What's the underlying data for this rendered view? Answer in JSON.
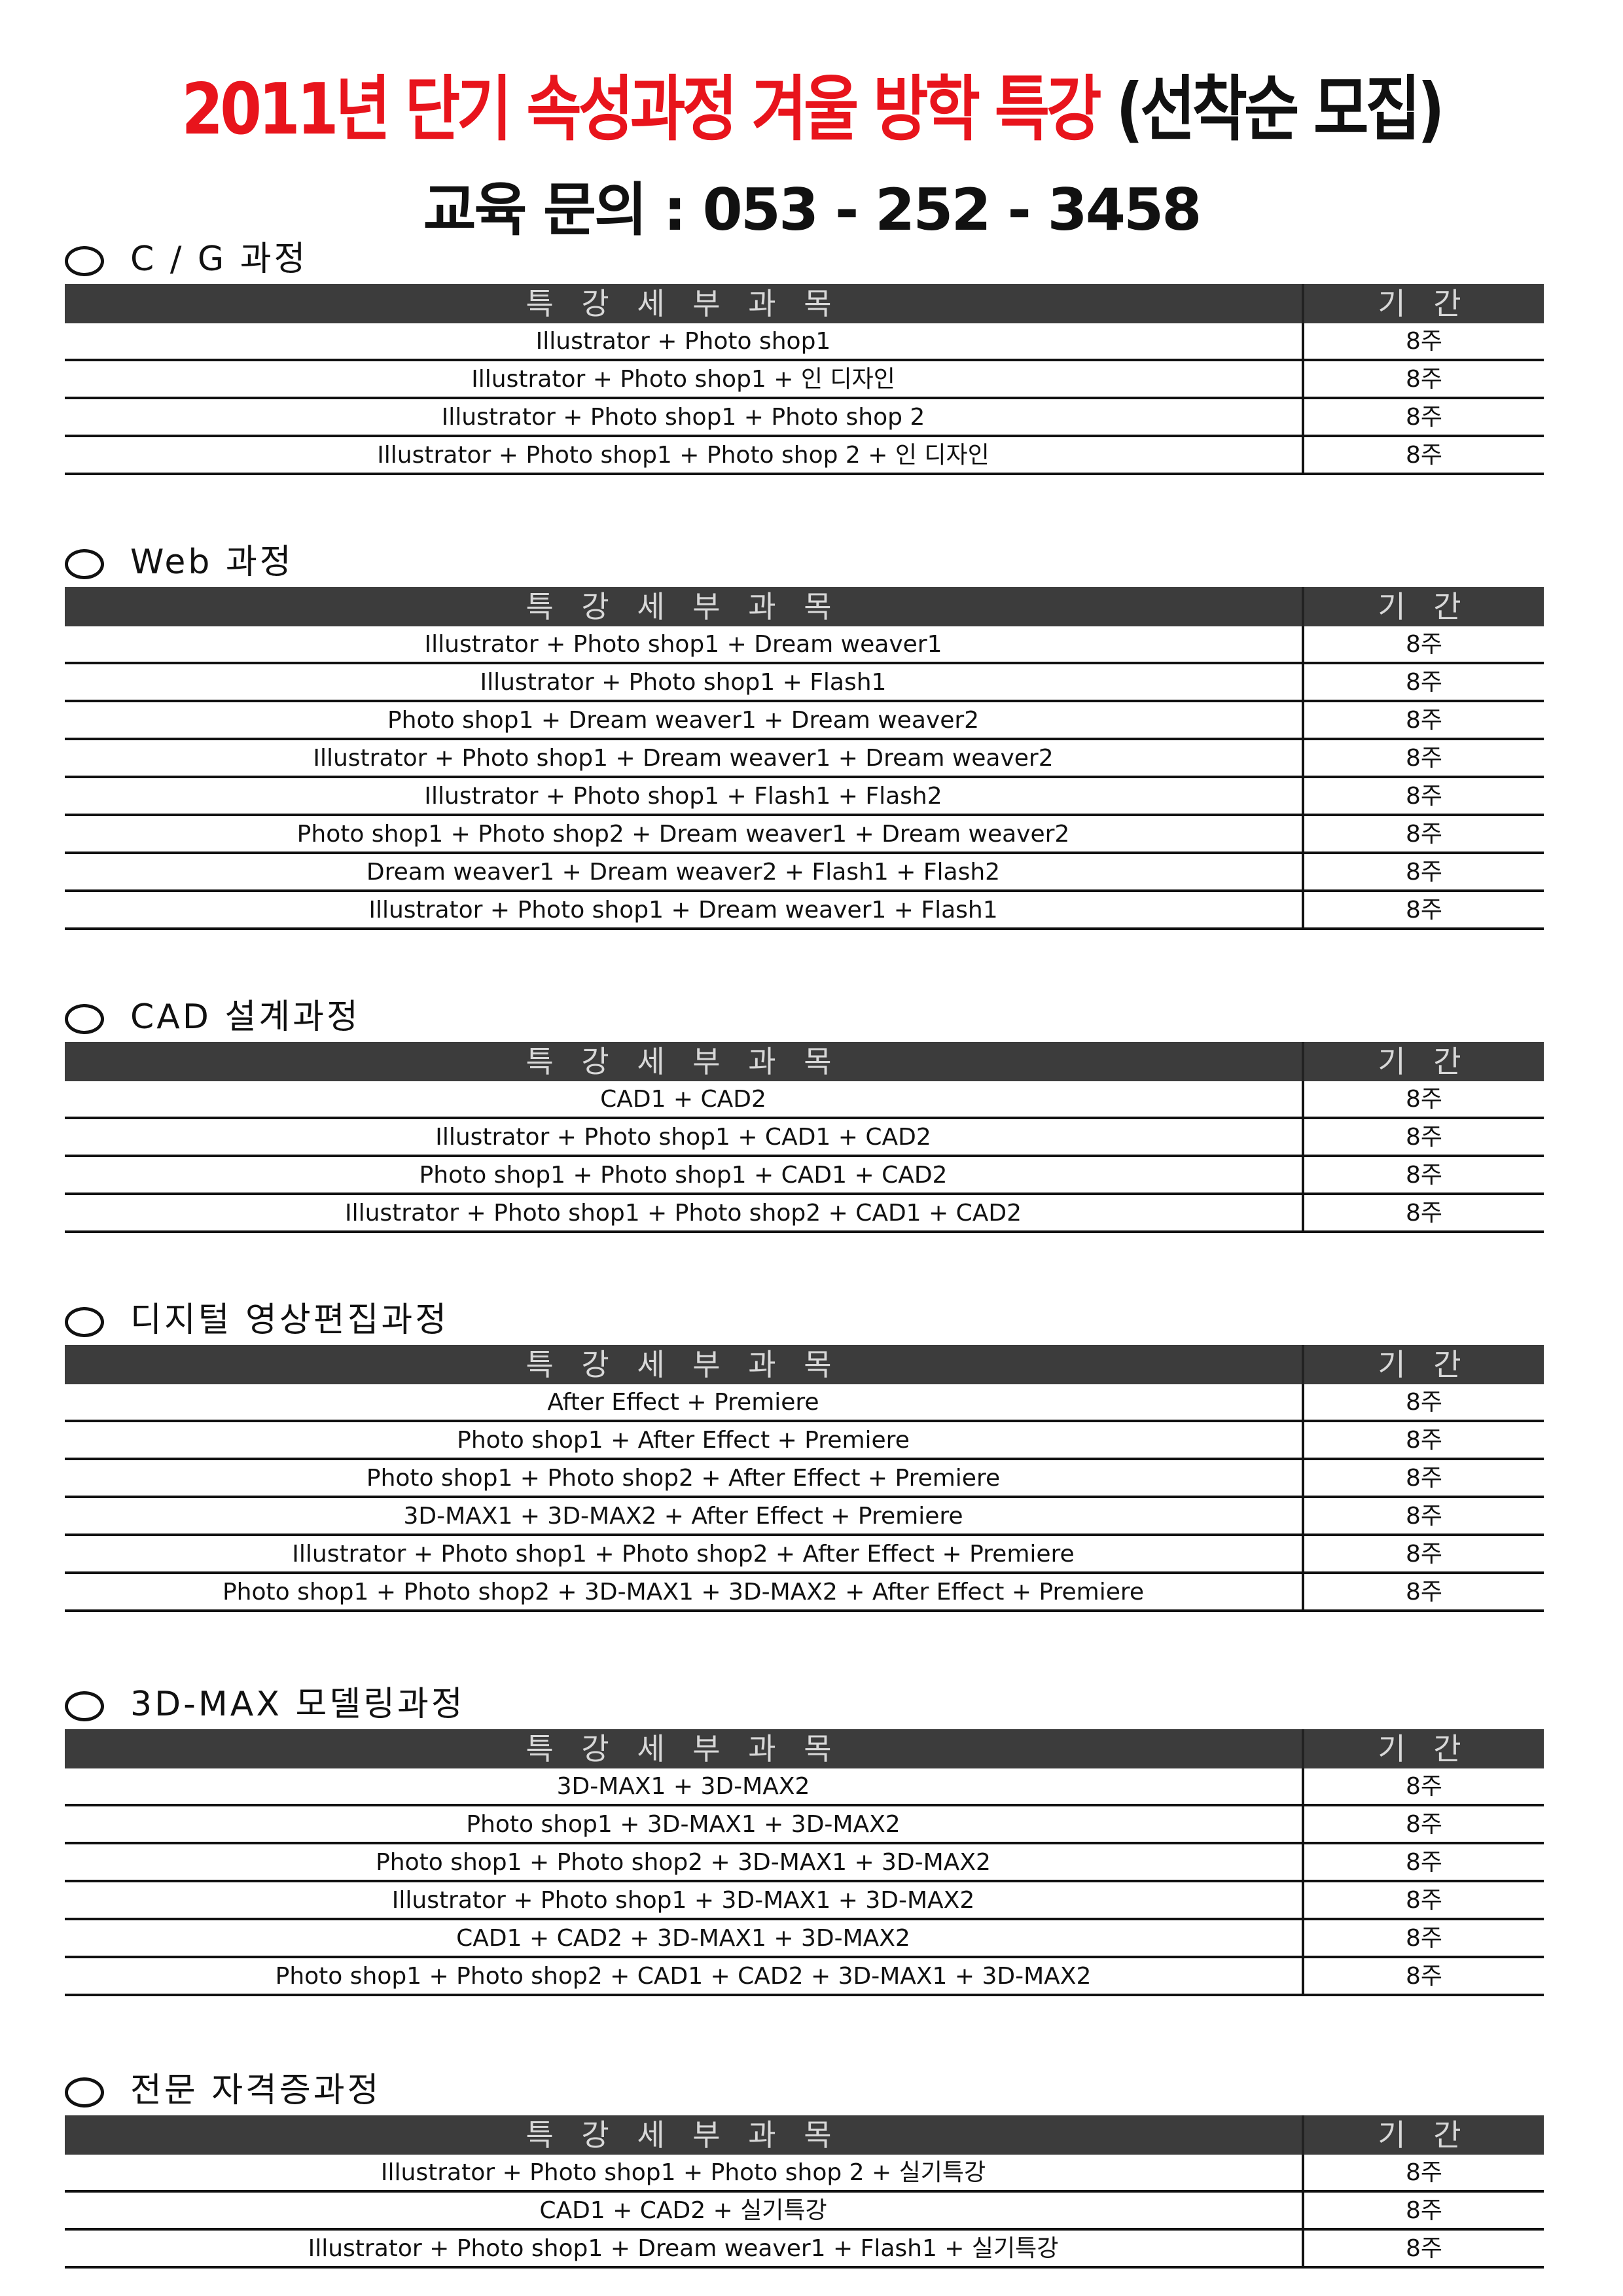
{
  "header": {
    "title": "2011년 단기 속성과정 겨울 방학 특강",
    "title_suffix": "(선착순 모집)",
    "contact": "교육 문의 : 053 - 252 - 3458"
  },
  "sections": [
    {
      "title": "C / G 과정",
      "columns": [
        "특 강 세 부 과 목",
        "기 간"
      ],
      "rows": [
        [
          "Illustrator + Photo shop1",
          "8주"
        ],
        [
          "Illustrator + Photo shop1 + 인 디자인",
          "8주"
        ],
        [
          "Illustrator + Photo shop1 + Photo shop 2",
          "8주"
        ],
        [
          "Illustrator + Photo shop1 + Photo shop 2 + 인 디자인",
          "8주"
        ]
      ]
    },
    {
      "title": "Web 과정",
      "columns": [
        "특 강 세 부 과 목",
        "기 간"
      ],
      "rows": [
        [
          "Illustrator + Photo shop1 + Dream weaver1",
          "8주"
        ],
        [
          "Illustrator + Photo shop1 + Flash1",
          "8주"
        ],
        [
          "Photo shop1 + Dream weaver1 + Dream weaver2",
          "8주"
        ],
        [
          "Illustrator + Photo shop1 + Dream weaver1 + Dream weaver2",
          "8주"
        ],
        [
          "Illustrator + Photo shop1 + Flash1 + Flash2",
          "8주"
        ],
        [
          "Photo shop1 + Photo shop2 + Dream weaver1 + Dream weaver2",
          "8주"
        ],
        [
          "Dream weaver1 + Dream weaver2 + Flash1 + Flash2",
          "8주"
        ],
        [
          "Illustrator + Photo shop1 + Dream weaver1 + Flash1",
          "8주"
        ]
      ]
    },
    {
      "title": "CAD 설계과정",
      "columns": [
        "특 강 세 부 과 목",
        "기 간"
      ],
      "rows": [
        [
          "CAD1 + CAD2",
          "8주"
        ],
        [
          "Illustrator + Photo shop1 + CAD1 + CAD2",
          "8주"
        ],
        [
          "Photo shop1 + Photo shop1 + CAD1 + CAD2",
          "8주"
        ],
        [
          "Illustrator + Photo shop1 + Photo shop2 + CAD1 + CAD2",
          "8주"
        ]
      ]
    },
    {
      "title": "디지털 영상편집과정",
      "columns": [
        "특 강 세 부 과 목",
        "기 간"
      ],
      "rows": [
        [
          "After Effect + Premiere",
          "8주"
        ],
        [
          "Photo shop1 + After Effect + Premiere",
          "8주"
        ],
        [
          "Photo shop1 + Photo shop2 + After Effect + Premiere",
          "8주"
        ],
        [
          "3D-MAX1 + 3D-MAX2 + After Effect + Premiere",
          "8주"
        ],
        [
          "Illustrator + Photo shop1 + Photo shop2 + After Effect + Premiere",
          "8주"
        ],
        [
          "Photo shop1 + Photo shop2 + 3D-MAX1 + 3D-MAX2 + After Effect + Premiere",
          "8주"
        ]
      ]
    },
    {
      "title": "3D-MAX 모델링과정",
      "columns": [
        "특 강 세 부 과 목",
        "기 간"
      ],
      "rows": [
        [
          "3D-MAX1 + 3D-MAX2",
          "8주"
        ],
        [
          "Photo shop1 + 3D-MAX1 + 3D-MAX2",
          "8주"
        ],
        [
          "Photo shop1 + Photo shop2 + 3D-MAX1 + 3D-MAX2",
          "8주"
        ],
        [
          "Illustrator + Photo shop1 + 3D-MAX1 + 3D-MAX2",
          "8주"
        ],
        [
          "CAD1 + CAD2 + 3D-MAX1 + 3D-MAX2",
          "8주"
        ],
        [
          "Photo shop1 + Photo shop2 + CAD1 + CAD2 + 3D-MAX1 + 3D-MAX2",
          "8주"
        ]
      ]
    },
    {
      "title": "전문 자격증과정",
      "columns": [
        "특 강 세 부 과 목",
        "기 간"
      ],
      "rows": [
        [
          "Illustrator + Photo shop1 + Photo shop 2 + 실기특강",
          "8주"
        ],
        [
          "CAD1 + CAD2 + 실기특강",
          "8주"
        ],
        [
          "Illustrator + Photo shop1 + Dream weaver1 + Flash1 + 실기특강",
          "8주"
        ]
      ]
    }
  ]
}
